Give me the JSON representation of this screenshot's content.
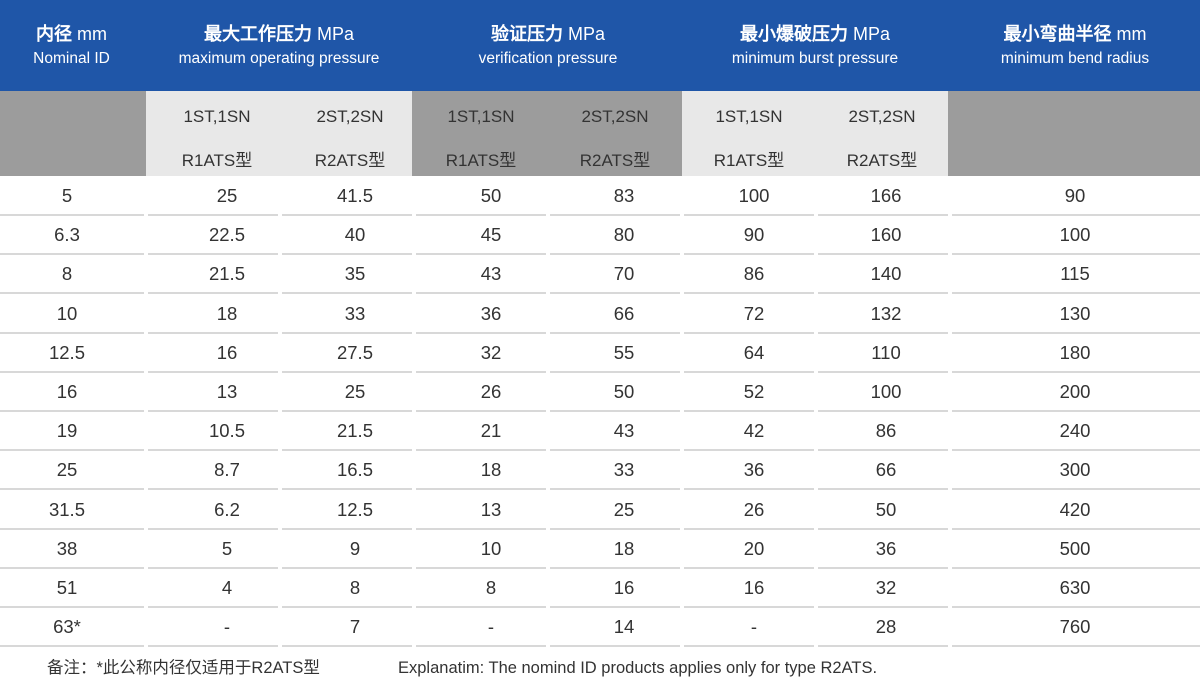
{
  "header": {
    "columns": [
      {
        "zh": "内径",
        "unit": "mm",
        "en": "Nominal ID"
      },
      {
        "zh": "最大工作压力",
        "unit": "MPa",
        "en": "maximum operating pressure"
      },
      {
        "zh": "验证压力",
        "unit": "MPa",
        "en": "verification pressure"
      },
      {
        "zh": "最小爆破压力",
        "unit": "MPa",
        "en": "minimum burst pressure"
      },
      {
        "zh": "最小弯曲半径",
        "unit": "mm",
        "en": "minimum bend radius"
      }
    ]
  },
  "subheader": {
    "labels": [
      {
        "line1": "1ST,1SN",
        "line2": "R1ATS型"
      },
      {
        "line1": "2ST,2SN",
        "line2": "R2ATS型"
      },
      {
        "line1": "1ST,1SN",
        "line2": "R1ATS型"
      },
      {
        "line1": "2ST,2SN",
        "line2": "R2ATS型"
      },
      {
        "line1": "1ST,1SN",
        "line2": "R1ATS型"
      },
      {
        "line1": "2ST,2SN",
        "line2": "R2ATS型"
      }
    ]
  },
  "rows": [
    [
      "5",
      "25",
      "41.5",
      "50",
      "83",
      "100",
      "166",
      "90"
    ],
    [
      "6.3",
      "22.5",
      "40",
      "45",
      "80",
      "90",
      "160",
      "100"
    ],
    [
      "8",
      "21.5",
      "35",
      "43",
      "70",
      "86",
      "140",
      "115"
    ],
    [
      "10",
      "18",
      "33",
      "36",
      "66",
      "72",
      "132",
      "130"
    ],
    [
      "12.5",
      "16",
      "27.5",
      "32",
      "55",
      "64",
      "110",
      "180"
    ],
    [
      "16",
      "13",
      "25",
      "26",
      "50",
      "52",
      "100",
      "200"
    ],
    [
      "19",
      "10.5",
      "21.5",
      "21",
      "43",
      "42",
      "86",
      "240"
    ],
    [
      "25",
      "8.7",
      "16.5",
      "18",
      "33",
      "36",
      "66",
      "300"
    ],
    [
      "31.5",
      "6.2",
      "12.5",
      "13",
      "25",
      "26",
      "50",
      "420"
    ],
    [
      "38",
      "5",
      "9",
      "10",
      "18",
      "20",
      "36",
      "500"
    ],
    [
      "51",
      "4",
      "8",
      "8",
      "16",
      "16",
      "32",
      "630"
    ],
    [
      "63*",
      "-",
      "7",
      "-",
      "14",
      "-",
      "28",
      "760"
    ]
  ],
  "footer": {
    "note_zh": "备注：*此公称内径仅适用于R2ATS型",
    "note_en": "Explanatim: The nomind ID products applies only for type R2ATS."
  },
  "colors": {
    "header_blue": "#1f56a8",
    "sub_light": "#e8e8e8",
    "sub_dark": "#9c9c9c",
    "row_line": "#d8d8d8",
    "text": "#333333"
  }
}
